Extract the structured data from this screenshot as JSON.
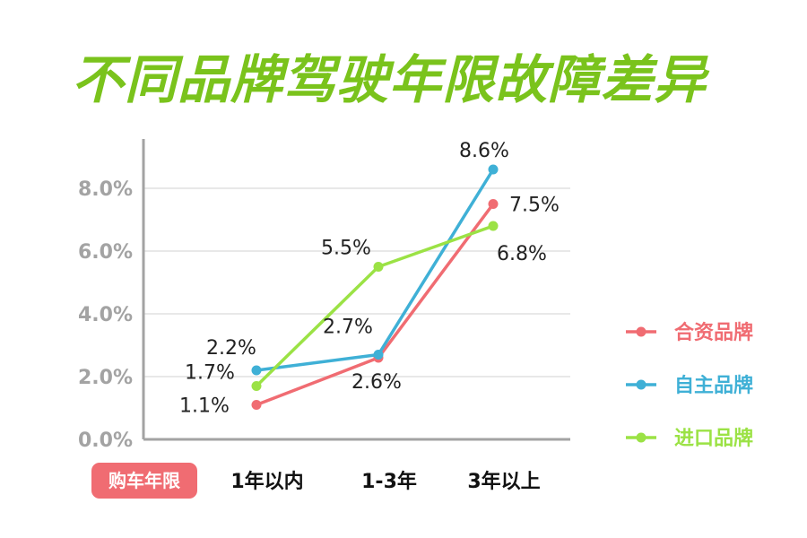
{
  "title": "不同品牌驾驶年限故障差异",
  "xaxis_badge": "购车年限",
  "colors": {
    "title": "#7ac31c",
    "badge": "#f06c72",
    "axis": "#a3a3a3",
    "grid": "#e8e8e8"
  },
  "chart_data": {
    "type": "line",
    "categories": [
      "1年以内",
      "1-3年",
      "3年以上"
    ],
    "xlabel": "购车年限",
    "ylabel": "",
    "ylim": [
      0,
      9.4
    ],
    "yticks": [
      "0.0%",
      "2.0%",
      "4.0%",
      "6.0%",
      "8.0%"
    ],
    "ytick_values": [
      0,
      2,
      4,
      6,
      8
    ],
    "grid": true,
    "legend_position": "right",
    "series": [
      {
        "name": "合资品牌",
        "color": "#f06c72",
        "values": [
          1.1,
          2.6,
          7.5
        ],
        "labels": [
          "1.1%",
          "2.6%",
          "7.5%"
        ]
      },
      {
        "name": "自主品牌",
        "color": "#3fb0d6",
        "values": [
          2.2,
          2.7,
          8.6
        ],
        "labels": [
          "2.2%",
          "2.7%",
          "8.6%"
        ]
      },
      {
        "name": "进口品牌",
        "color": "#9be245",
        "values": [
          1.7,
          5.5,
          6.8
        ],
        "labels": [
          "1.7%",
          "5.5%",
          "6.8%"
        ]
      }
    ]
  }
}
